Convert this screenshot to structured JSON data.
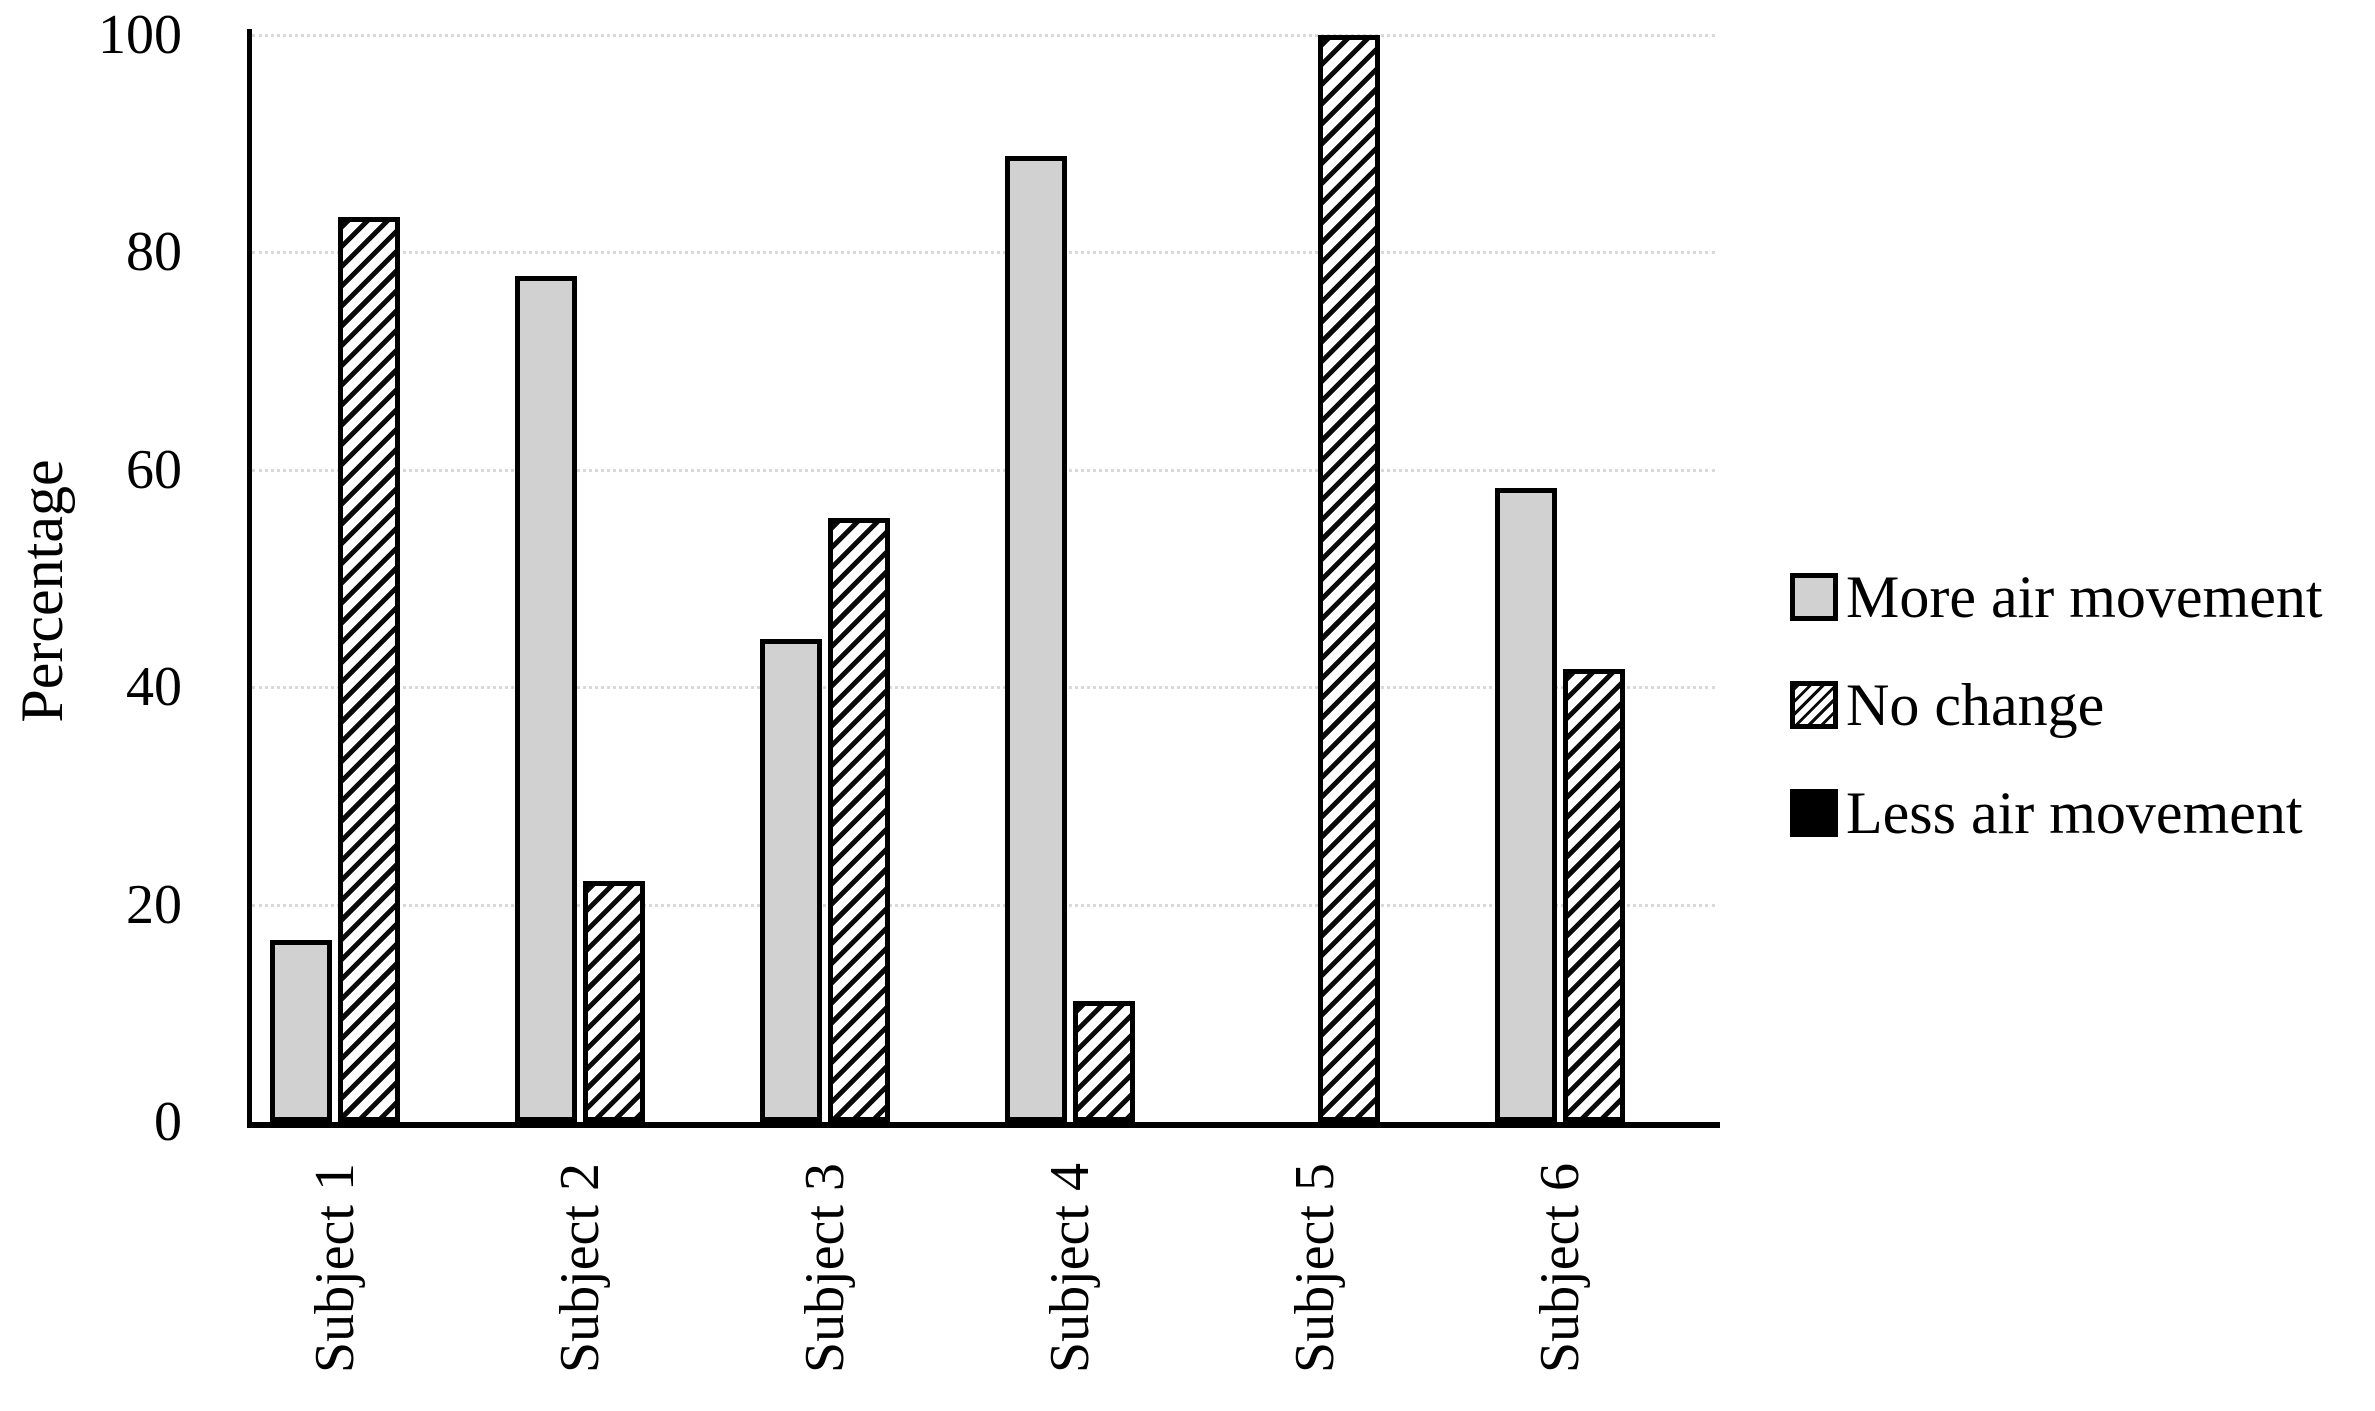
{
  "chart_data": {
    "type": "bar",
    "title": "",
    "categories": [
      "Subject 1",
      "Subject 2",
      "Subject 3",
      "Subject 4",
      "Subject 5",
      "Subject 6"
    ],
    "series": [
      {
        "name": "More air movement",
        "style": "solid-gray",
        "values": [
          16.7,
          77.8,
          44.4,
          88.9,
          0,
          58.3
        ]
      },
      {
        "name": "No change",
        "style": "diagonal-hatch",
        "values": [
          83.3,
          22.2,
          55.6,
          11.1,
          100,
          41.7
        ]
      },
      {
        "name": "Less air movement",
        "style": "solid-black",
        "values": [
          0,
          0,
          0,
          0,
          0,
          0
        ]
      }
    ],
    "xlabel": "",
    "ylabel": "Percentage",
    "ylim": [
      0,
      100
    ],
    "yticks": [
      0,
      20,
      40,
      60,
      80,
      100
    ],
    "grid": "horizontal-dotted",
    "legend_position": "right-middle"
  },
  "colors": {
    "background": "#ffffff",
    "bar_gray_fill": "#d1d1d1",
    "bar_border": "#000000",
    "hatch_foreground": "#000000",
    "hatch_background": "#ffffff",
    "gridline": "#d9d9d9",
    "axis": "#000000",
    "text": "#000000"
  }
}
